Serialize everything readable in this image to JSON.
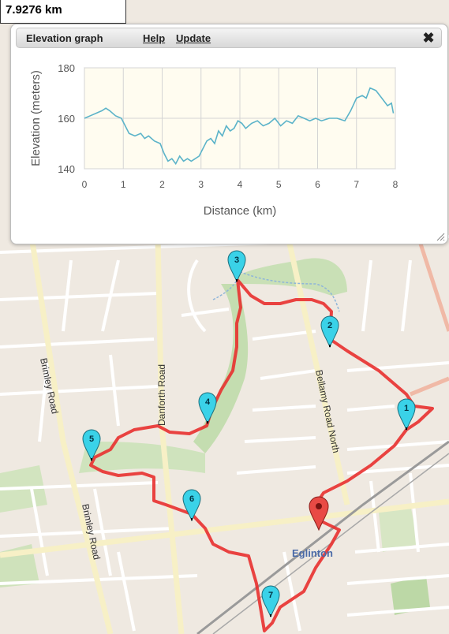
{
  "distance": {
    "total": "7.9276 km"
  },
  "panel": {
    "title": "Elevation graph",
    "help_label": "Help",
    "update_label": "Update",
    "close_icon": "close-icon"
  },
  "chart_data": {
    "type": "line",
    "xlabel": "Distance (km)",
    "ylabel": "Elevation (meters)",
    "xlim": [
      0,
      8
    ],
    "ylim": [
      140,
      180
    ],
    "xticks": [
      "0",
      "1",
      "2",
      "3",
      "4",
      "5",
      "6",
      "7",
      "8"
    ],
    "yticks": [
      "140",
      "160",
      "180"
    ],
    "grid": true,
    "line_color": "#5bb3c9",
    "series": [
      {
        "x": [
          0,
          0.15,
          0.3,
          0.45,
          0.55,
          0.65,
          0.8,
          0.95,
          1.05,
          1.15,
          1.3,
          1.45,
          1.55,
          1.65,
          1.8,
          1.95,
          2.05,
          2.15,
          2.25,
          2.35,
          2.45,
          2.55,
          2.65,
          2.75,
          2.85,
          2.95,
          3.05,
          3.15,
          3.25,
          3.35,
          3.45,
          3.55,
          3.65,
          3.75,
          3.85,
          3.95,
          4.05,
          4.15,
          4.3,
          4.45,
          4.6,
          4.75,
          4.9,
          5.05,
          5.2,
          5.35,
          5.5,
          5.65,
          5.8,
          5.95,
          6.1,
          6.3,
          6.5,
          6.7,
          6.85,
          7.0,
          7.15,
          7.25,
          7.35,
          7.5,
          7.65,
          7.8,
          7.9,
          7.95
        ],
        "values": [
          160,
          161,
          162,
          163,
          164,
          163,
          161,
          160,
          157,
          154,
          153,
          154,
          152,
          153,
          151,
          150,
          146,
          143,
          144,
          142,
          145,
          143,
          144,
          143,
          144,
          145,
          148,
          151,
          152,
          150,
          155,
          153,
          157,
          155,
          156,
          159,
          158,
          156,
          158,
          159,
          157,
          158,
          160,
          157,
          159,
          158,
          161,
          160,
          159,
          160,
          159,
          160,
          160,
          159,
          163,
          168,
          169,
          168,
          172,
          171,
          168,
          165,
          166,
          162
        ],
        "name": ""
      }
    ]
  },
  "markers": {
    "start_icon": "start-marker-icon",
    "waypoints": [
      {
        "label": "1"
      },
      {
        "label": "2"
      },
      {
        "label": "3"
      },
      {
        "label": "4"
      },
      {
        "label": "5"
      },
      {
        "label": "6"
      },
      {
        "label": "7"
      }
    ]
  },
  "map_labels": {
    "danforth": "Danforth Road",
    "brimley_1": "Brimley Road",
    "brimley_2": "Brimley Road",
    "bellamy": "Bellamy Road North",
    "station": "Eglinton"
  },
  "colors": {
    "route": "#e8302f",
    "marker_fill": "#3ad2e8",
    "start_marker": "#e94a45",
    "park": "#b8d7a4"
  }
}
